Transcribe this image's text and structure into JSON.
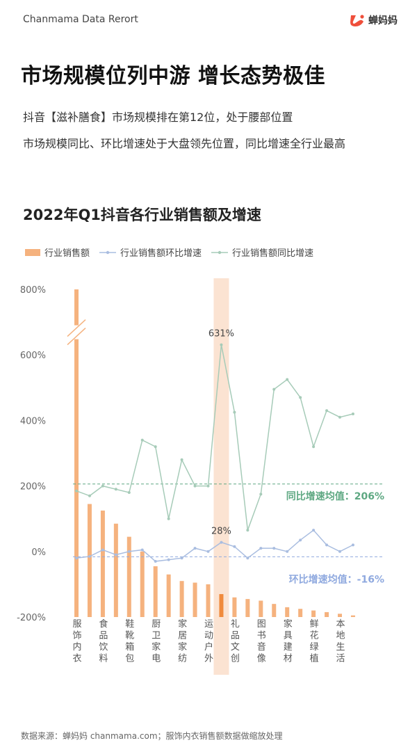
{
  "header": {
    "brand_title": "Chanmama Data Rerort",
    "logo_text": "蝉妈妈"
  },
  "headline": "市场规模位列中游 增长态势极佳",
  "subtitles": [
    "抖音【滋补膳食】市场规模排在第12位，处于腰部位置",
    "市场规模同比、环比增速处于大盘领先位置，同比增速全行业最高"
  ],
  "colors": {
    "bar": "#f5b27e",
    "bar_highlight": "#f08a3c",
    "highlight_band": "#fbe3d2",
    "mom_line": "#a9bde0",
    "yoy_line": "#a6cbb8",
    "yoy_avg": "#5ea882",
    "mom_avg": "#8fa9df",
    "axis_text": "#666666"
  },
  "chart_data": {
    "type": "bar",
    "title": "2022年Q1抖音各行业销售额及增速",
    "legend": [
      "行业销售额",
      "行业销售额环比增速",
      "行业销售额同比增速"
    ],
    "legend_position": "top-left",
    "grid": false,
    "ylim": [
      -200,
      800
    ],
    "y_ticks": [
      "800%",
      "600%",
      "400%",
      "200%",
      "0%",
      "-200%"
    ],
    "y_tick_values": [
      800,
      600,
      400,
      200,
      0,
      -200
    ],
    "axis_break_between": [
      600,
      800
    ],
    "categories": [
      "服饰内衣",
      "",
      "食品饮料",
      "",
      "鞋靴箱包",
      "",
      "厨卫家电",
      "",
      "家居家纺",
      "",
      "运动户外",
      "",
      "礼品文创",
      "",
      "图书音像",
      "",
      "家具建材",
      "",
      "鲜花绿植",
      "",
      "本地生活",
      ""
    ],
    "series": [
      {
        "name": "行业销售额",
        "kind": "bar",
        "baseline": -200,
        "values": [
          800,
          145,
          125,
          85,
          45,
          0,
          -45,
          -70,
          -90,
          -95,
          -100,
          -130,
          -140,
          -145,
          -150,
          -160,
          -170,
          -175,
          -180,
          -185,
          -190,
          -195
        ]
      },
      {
        "name": "行业销售额环比增速",
        "kind": "line",
        "values": [
          -20,
          -15,
          5,
          -10,
          0,
          5,
          -30,
          -25,
          -20,
          10,
          0,
          28,
          15,
          -20,
          10,
          10,
          0,
          35,
          65,
          20,
          0,
          20
        ]
      },
      {
        "name": "行业销售额同比增速",
        "kind": "line",
        "values": [
          185,
          170,
          200,
          190,
          180,
          340,
          320,
          100,
          280,
          200,
          200,
          631,
          425,
          65,
          175,
          495,
          525,
          470,
          320,
          430,
          410,
          420
        ]
      }
    ],
    "highlight_index": 11,
    "annotations": [
      {
        "text": "631%",
        "index": 11,
        "series": "行业销售额同比增速",
        "value": 631
      },
      {
        "text": "28%",
        "index": 11,
        "series": "行业销售额环比增速",
        "value": 28
      }
    ],
    "reference_lines": [
      {
        "value": 206,
        "label": "同比增速均值：206%"
      },
      {
        "value": -16,
        "label": "环比增速均值：-16%"
      }
    ]
  },
  "footer": "数据来源：蝉妈妈 chanmama.com；服饰内衣销售额数据做缩放处理"
}
